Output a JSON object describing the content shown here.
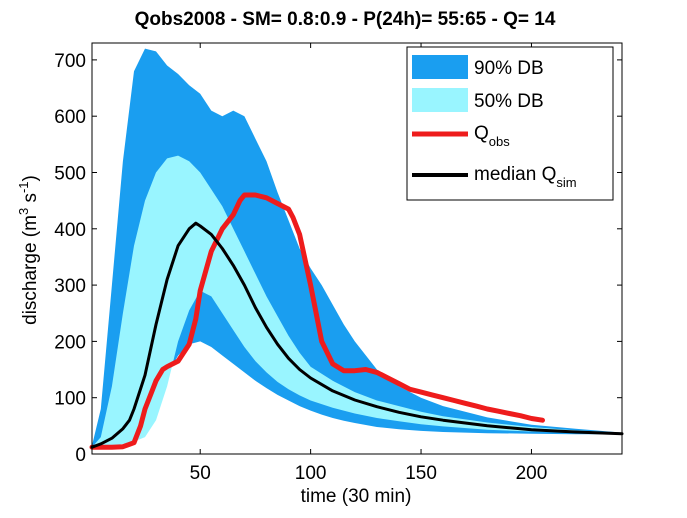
{
  "chart_data": {
    "type": "area",
    "title": "Qobs2008 - SM= 0.8:0.9 - P(24h)= 55:65 - Q= 14",
    "xlabel": "time (30 min)",
    "ylabel": {
      "main": "discharge (m",
      "sup1": "3",
      "mid": " s",
      "sup2": "-1",
      "end": ")"
    },
    "xlim": [
      1,
      241
    ],
    "ylim": [
      0,
      730
    ],
    "xticks": [
      50,
      100,
      150,
      200
    ],
    "yticks": [
      0,
      100,
      200,
      300,
      400,
      500,
      600,
      700
    ],
    "grid": false,
    "legend_position": "top-right",
    "legend": [
      {
        "label": "90% DB",
        "kind": "patch",
        "color": "#1a9ef0"
      },
      {
        "label": "50% DB",
        "kind": "patch",
        "color": "#99f5ff"
      },
      {
        "label": "Q",
        "sub": "obs",
        "kind": "line",
        "color": "#ee1c1c"
      },
      {
        "label": "median Q",
        "sub": "sim",
        "kind": "line",
        "color": "#000000"
      }
    ],
    "series": [
      {
        "name": "90% DB",
        "kind": "band",
        "color": "#1a9ef0",
        "x": [
          1,
          5,
          10,
          15,
          20,
          25,
          30,
          35,
          40,
          45,
          50,
          55,
          60,
          65,
          70,
          75,
          80,
          85,
          90,
          95,
          100,
          105,
          110,
          115,
          120,
          130,
          140,
          150,
          160,
          180,
          200,
          220,
          241
        ],
        "upper": [
          15,
          80,
          300,
          520,
          680,
          720,
          715,
          690,
          675,
          655,
          640,
          610,
          600,
          610,
          600,
          560,
          520,
          465,
          415,
          365,
          330,
          300,
          265,
          230,
          200,
          150,
          120,
          100,
          85,
          65,
          52,
          45,
          38
        ],
        "lower": [
          10,
          12,
          15,
          20,
          25,
          40,
          90,
          140,
          175,
          195,
          200,
          190,
          175,
          160,
          145,
          130,
          117,
          105,
          95,
          85,
          77,
          70,
          64,
          59,
          55,
          48,
          44,
          41,
          39,
          37,
          36,
          35,
          35
        ]
      },
      {
        "name": "50% DB",
        "kind": "band",
        "color": "#99f5ff",
        "x": [
          1,
          5,
          10,
          15,
          20,
          25,
          30,
          35,
          40,
          45,
          50,
          55,
          60,
          65,
          70,
          75,
          80,
          85,
          90,
          95,
          100,
          110,
          120,
          130,
          140,
          150,
          160,
          180,
          200,
          220,
          241
        ],
        "upper": [
          12,
          30,
          120,
          250,
          370,
          450,
          500,
          525,
          530,
          520,
          500,
          470,
          440,
          400,
          360,
          320,
          280,
          245,
          210,
          180,
          155,
          130,
          110,
          95,
          85,
          75,
          67,
          56,
          48,
          42,
          38
        ],
        "lower": [
          10,
          12,
          14,
          18,
          22,
          30,
          60,
          120,
          200,
          255,
          290,
          280,
          250,
          220,
          190,
          165,
          145,
          128,
          115,
          104,
          95,
          82,
          72,
          64,
          58,
          53,
          49,
          43,
          40,
          38,
          36
        ]
      },
      {
        "name": "Q_obs",
        "kind": "line",
        "color": "#ee1c1c",
        "x": [
          1,
          10,
          15,
          20,
          23,
          25,
          28,
          30,
          33,
          35,
          40,
          45,
          48,
          50,
          55,
          60,
          65,
          68,
          70,
          75,
          80,
          85,
          90,
          92,
          95,
          100,
          105,
          110,
          115,
          120,
          125,
          130,
          135,
          140,
          145,
          150,
          155,
          160,
          165,
          170,
          175,
          180,
          185,
          190,
          195,
          200,
          205
        ],
        "y": [
          12,
          12,
          13,
          20,
          50,
          80,
          110,
          130,
          150,
          155,
          165,
          195,
          240,
          290,
          360,
          400,
          425,
          450,
          460,
          460,
          455,
          445,
          435,
          420,
          390,
          300,
          200,
          160,
          148,
          148,
          150,
          145,
          135,
          125,
          115,
          110,
          105,
          100,
          95,
          90,
          85,
          80,
          76,
          72,
          68,
          63,
          60
        ]
      },
      {
        "name": "median Q_sim",
        "kind": "line",
        "color": "#000000",
        "x": [
          1,
          5,
          10,
          15,
          18,
          20,
          25,
          30,
          35,
          40,
          45,
          48,
          50,
          55,
          60,
          65,
          70,
          75,
          80,
          85,
          90,
          95,
          100,
          110,
          120,
          130,
          140,
          150,
          160,
          180,
          200,
          220,
          241
        ],
        "y": [
          12,
          18,
          28,
          45,
          60,
          80,
          140,
          230,
          310,
          370,
          400,
          410,
          405,
          390,
          365,
          335,
          300,
          260,
          225,
          195,
          170,
          150,
          135,
          112,
          96,
          84,
          74,
          66,
          60,
          50,
          43,
          39,
          36
        ]
      }
    ]
  }
}
